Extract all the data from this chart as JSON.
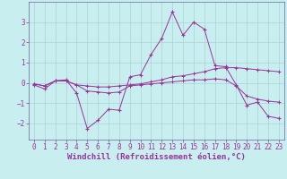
{
  "xlabel": "Windchill (Refroidissement éolien,°C)",
  "background_color": "#c8eef0",
  "grid_color": "#aad4d8",
  "line_color": "#993399",
  "spine_color": "#666699",
  "x": [
    0,
    1,
    2,
    3,
    4,
    5,
    6,
    7,
    8,
    9,
    10,
    11,
    12,
    13,
    14,
    15,
    16,
    17,
    18,
    19,
    20,
    21,
    22,
    23
  ],
  "line1": [
    -0.1,
    -0.3,
    0.1,
    0.15,
    -0.5,
    -2.25,
    -1.85,
    -1.3,
    -1.35,
    0.3,
    0.4,
    1.4,
    2.2,
    3.5,
    2.35,
    3.0,
    2.65,
    0.85,
    0.8,
    -0.1,
    -1.1,
    -0.95,
    -1.65,
    -1.75
  ],
  "line2": [
    -0.05,
    -0.15,
    0.1,
    0.1,
    -0.1,
    -0.15,
    -0.2,
    -0.2,
    -0.15,
    -0.1,
    -0.05,
    0.05,
    0.15,
    0.3,
    0.35,
    0.45,
    0.55,
    0.7,
    0.75,
    0.75,
    0.7,
    0.65,
    0.6,
    0.55
  ],
  "line3": [
    -0.05,
    -0.15,
    0.1,
    0.1,
    -0.1,
    -0.4,
    -0.45,
    -0.5,
    -0.45,
    -0.15,
    -0.1,
    -0.05,
    0.0,
    0.05,
    0.1,
    0.15,
    0.15,
    0.2,
    0.15,
    -0.15,
    -0.65,
    -0.8,
    -0.9,
    -0.95
  ],
  "ylim": [
    -2.8,
    4.0
  ],
  "yticks": [
    -2,
    -1,
    0,
    1,
    2,
    3
  ],
  "xticks": [
    0,
    1,
    2,
    3,
    4,
    5,
    6,
    7,
    8,
    9,
    10,
    11,
    12,
    13,
    14,
    15,
    16,
    17,
    18,
    19,
    20,
    21,
    22,
    23
  ],
  "tick_fontsize": 5.5,
  "xlabel_fontsize": 6.5
}
